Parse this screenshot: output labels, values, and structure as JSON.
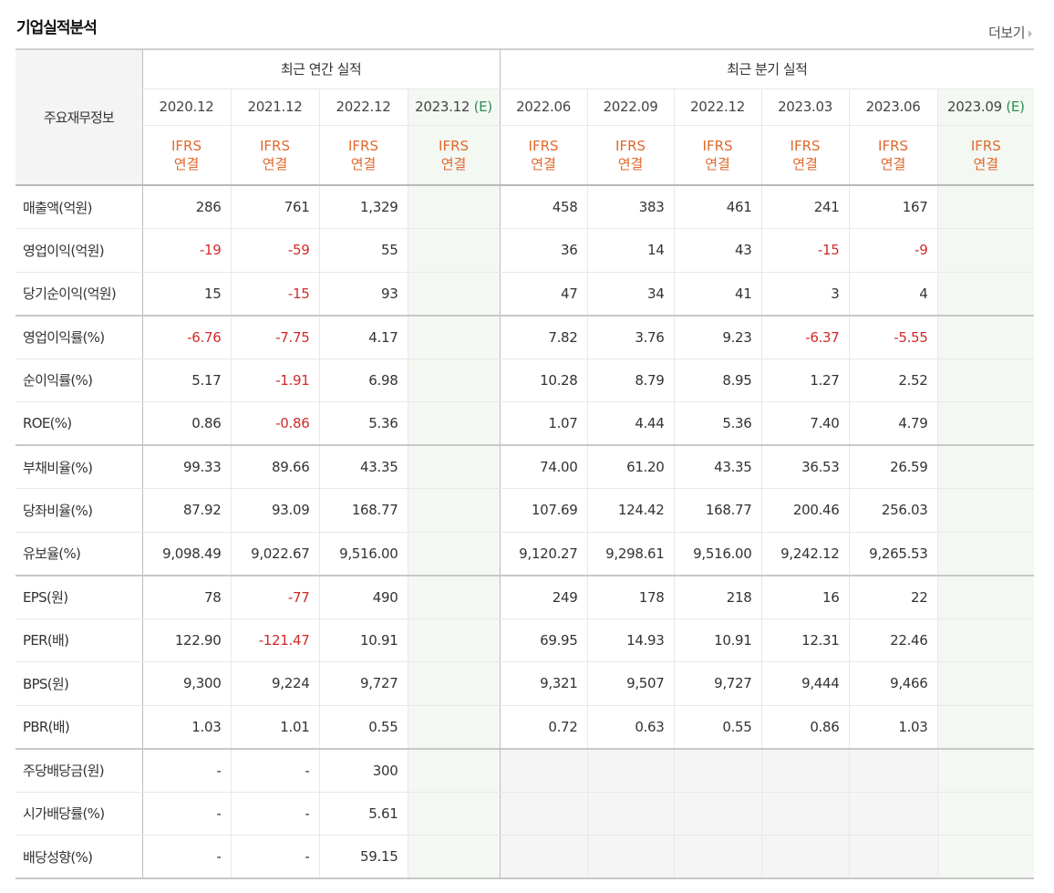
{
  "title": "기업실적분석",
  "more_label": "더보기",
  "table": {
    "corner_label": "주요재무정보",
    "annual_label": "최근 연간 실적",
    "quarter_label": "최근 분기 실적",
    "annual_periods": [
      {
        "text": "2020.12",
        "est": ""
      },
      {
        "text": "2021.12",
        "est": ""
      },
      {
        "text": "2022.12",
        "est": ""
      },
      {
        "text": "2023.12",
        "est": "(E)"
      }
    ],
    "quarter_periods": [
      {
        "text": "2022.06",
        "est": ""
      },
      {
        "text": "2022.09",
        "est": ""
      },
      {
        "text": "2022.12",
        "est": ""
      },
      {
        "text": "2023.03",
        "est": ""
      },
      {
        "text": "2023.06",
        "est": ""
      },
      {
        "text": "2023.09",
        "est": "(E)"
      }
    ],
    "ifrs_line1": "IFRS",
    "ifrs_line2": "연결",
    "rows": [
      {
        "label": "매출액(억원)",
        "values": [
          "286",
          "761",
          "1,329",
          "",
          "458",
          "383",
          "461",
          "241",
          "167",
          ""
        ]
      },
      {
        "label": "영업이익(억원)",
        "values": [
          "-19",
          "-59",
          "55",
          "",
          "36",
          "14",
          "43",
          "-15",
          "-9",
          ""
        ]
      },
      {
        "label": "당기순이익(억원)",
        "values": [
          "15",
          "-15",
          "93",
          "",
          "47",
          "34",
          "41",
          "3",
          "4",
          ""
        ],
        "group_end": true
      },
      {
        "label": "영업이익률(%)",
        "values": [
          "-6.76",
          "-7.75",
          "4.17",
          "",
          "7.82",
          "3.76",
          "9.23",
          "-6.37",
          "-5.55",
          ""
        ]
      },
      {
        "label": "순이익률(%)",
        "values": [
          "5.17",
          "-1.91",
          "6.98",
          "",
          "10.28",
          "8.79",
          "8.95",
          "1.27",
          "2.52",
          ""
        ]
      },
      {
        "label": "ROE(%)",
        "values": [
          "0.86",
          "-0.86",
          "5.36",
          "",
          "1.07",
          "4.44",
          "5.36",
          "7.40",
          "4.79",
          ""
        ],
        "group_end": true
      },
      {
        "label": "부채비율(%)",
        "values": [
          "99.33",
          "89.66",
          "43.35",
          "",
          "74.00",
          "61.20",
          "43.35",
          "36.53",
          "26.59",
          ""
        ]
      },
      {
        "label": "당좌비율(%)",
        "values": [
          "87.92",
          "93.09",
          "168.77",
          "",
          "107.69",
          "124.42",
          "168.77",
          "200.46",
          "256.03",
          ""
        ]
      },
      {
        "label": "유보율(%)",
        "values": [
          "9,098.49",
          "9,022.67",
          "9,516.00",
          "",
          "9,120.27",
          "9,298.61",
          "9,516.00",
          "9,242.12",
          "9,265.53",
          ""
        ],
        "group_end": true
      },
      {
        "label": "EPS(원)",
        "values": [
          "78",
          "-77",
          "490",
          "",
          "249",
          "178",
          "218",
          "16",
          "22",
          ""
        ]
      },
      {
        "label": "PER(배)",
        "values": [
          "122.90",
          "-121.47",
          "10.91",
          "",
          "69.95",
          "14.93",
          "10.91",
          "12.31",
          "22.46",
          ""
        ]
      },
      {
        "label": "BPS(원)",
        "values": [
          "9,300",
          "9,224",
          "9,727",
          "",
          "9,321",
          "9,507",
          "9,727",
          "9,444",
          "9,466",
          ""
        ]
      },
      {
        "label": "PBR(배)",
        "values": [
          "1.03",
          "1.01",
          "0.55",
          "",
          "0.72",
          "0.63",
          "0.55",
          "0.86",
          "1.03",
          ""
        ],
        "group_end": true
      },
      {
        "label": "주당배당금(원)",
        "values": [
          "-",
          "-",
          "300",
          "",
          "",
          "",
          "",
          "",
          "",
          ""
        ],
        "blank_quarter": true
      },
      {
        "label": "시가배당률(%)",
        "values": [
          "-",
          "-",
          "5.61",
          "",
          "",
          "",
          "",
          "",
          "",
          ""
        ],
        "blank_quarter": true
      },
      {
        "label": "배당성향(%)",
        "values": [
          "-",
          "-",
          "59.15",
          "",
          "",
          "",
          "",
          "",
          "",
          ""
        ],
        "blank_quarter": true,
        "last": true
      }
    ]
  },
  "colors": {
    "negative": "#d12a2a",
    "ifrs": "#e0692d",
    "estimate": "#2e8b57",
    "estimate_column_bg": "#f3f8f2"
  }
}
